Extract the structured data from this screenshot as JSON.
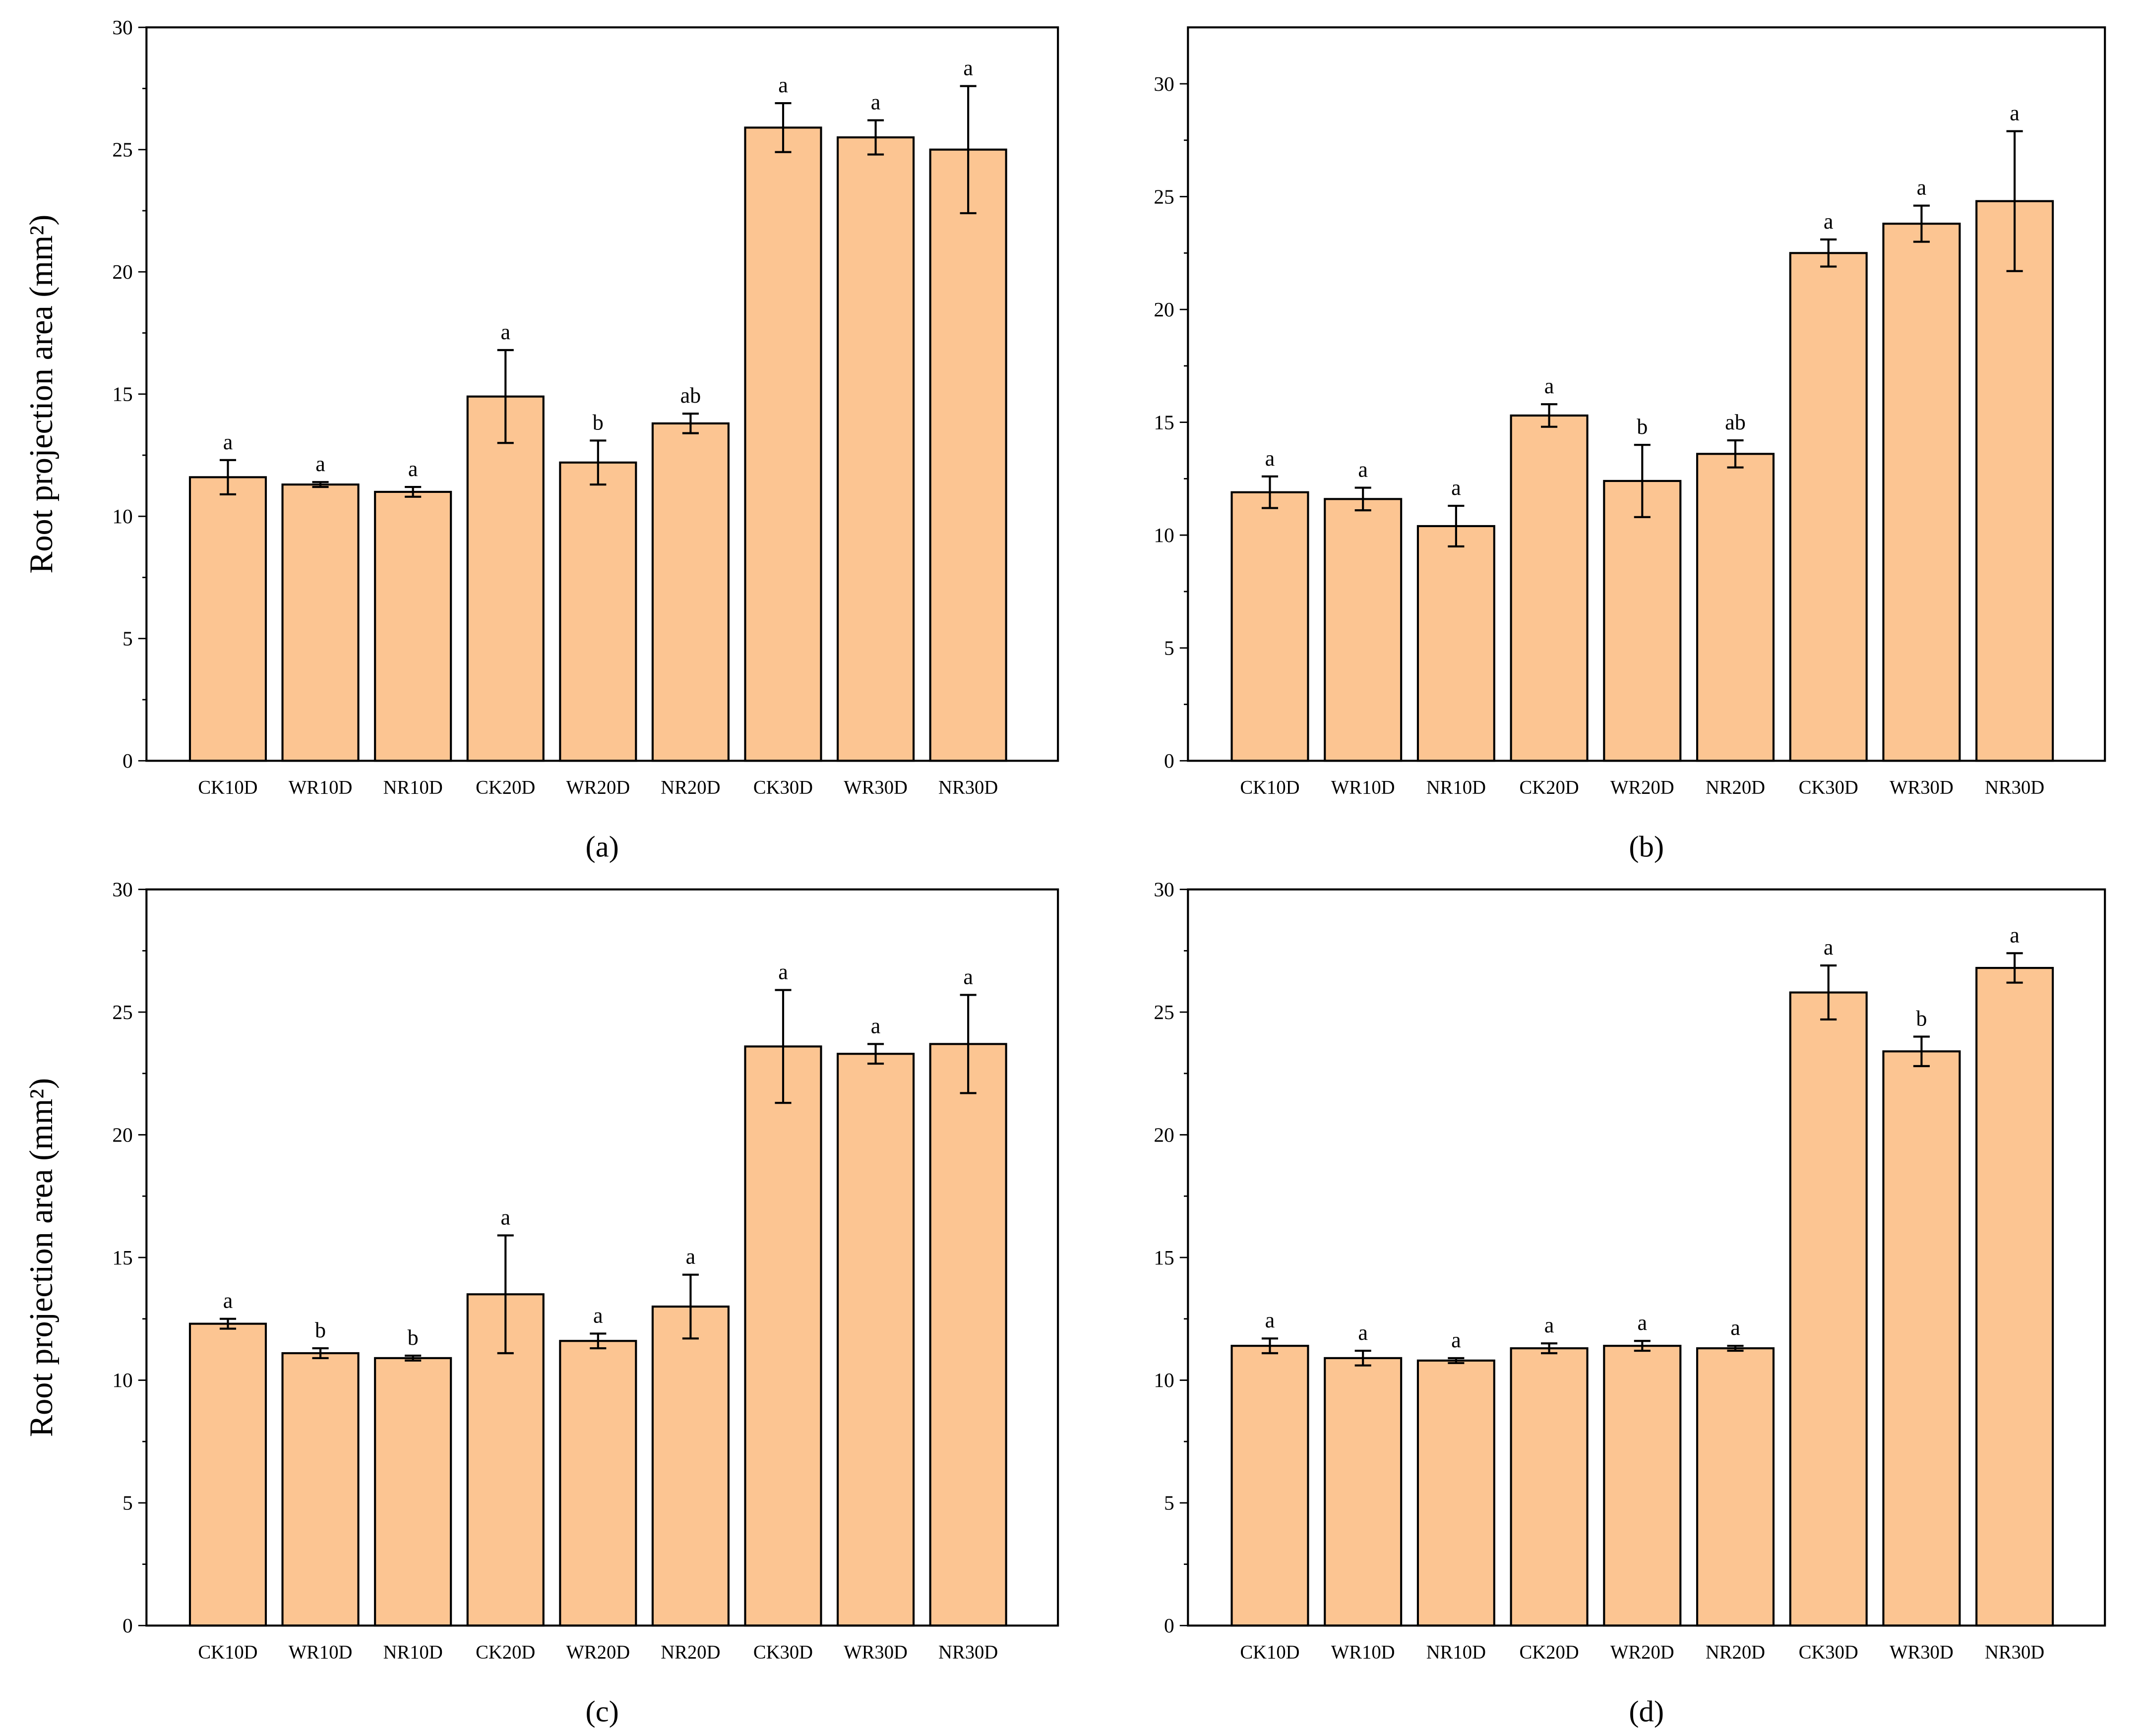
{
  "chart_data": [
    {
      "type": "bar",
      "caption": "(a)",
      "ylabel": "Root projection area (mm²)",
      "color": "#fcc592",
      "categories": [
        "CK10D",
        "WR10D",
        "NR10D",
        "CK20D",
        "WR20D",
        "NR20D",
        "CK30D",
        "WR30D",
        "NR30D"
      ],
      "values": [
        11.6,
        11.3,
        11.0,
        14.9,
        12.2,
        13.8,
        25.9,
        25.5,
        25.0
      ],
      "errors": [
        0.7,
        0.1,
        0.2,
        1.9,
        0.9,
        0.4,
        1.0,
        0.7,
        2.6
      ],
      "letters": [
        "a",
        "a",
        "a",
        "a",
        "b",
        "ab",
        "a",
        "a",
        "a"
      ],
      "ylim": [
        0,
        30
      ],
      "yticks": [
        0,
        5,
        10,
        15,
        20,
        25,
        30
      ]
    },
    {
      "type": "bar",
      "caption": "(b)",
      "color": "#fcc592",
      "categories": [
        "CK10D",
        "WR10D",
        "NR10D",
        "CK20D",
        "WR20D",
        "NR20D",
        "CK30D",
        "WR30D",
        "NR30D"
      ],
      "values": [
        11.9,
        11.6,
        10.4,
        15.3,
        12.4,
        13.6,
        22.5,
        23.8,
        24.8
      ],
      "errors": [
        0.7,
        0.5,
        0.9,
        0.5,
        1.6,
        0.6,
        0.6,
        0.8,
        3.1
      ],
      "letters": [
        "a",
        "a",
        "a",
        "a",
        "b",
        "ab",
        "a",
        "a",
        "a"
      ],
      "ylim": [
        0,
        32.5
      ],
      "yticks": [
        0,
        5,
        10,
        15,
        20,
        25,
        30
      ]
    },
    {
      "type": "bar",
      "caption": "(c)",
      "ylabel": "Root projection area (mm²)",
      "color": "#fcc592",
      "categories": [
        "CK10D",
        "WR10D",
        "NR10D",
        "CK20D",
        "WR20D",
        "NR20D",
        "CK30D",
        "WR30D",
        "NR30D"
      ],
      "values": [
        12.3,
        11.1,
        10.9,
        13.5,
        11.6,
        13.0,
        23.6,
        23.3,
        23.7
      ],
      "errors": [
        0.2,
        0.2,
        0.1,
        2.4,
        0.3,
        1.3,
        2.3,
        0.4,
        2.0
      ],
      "letters": [
        "a",
        "b",
        "b",
        "a",
        "a",
        "a",
        "a",
        "a",
        "a"
      ],
      "ylim": [
        0,
        30
      ],
      "yticks": [
        0,
        5,
        10,
        15,
        20,
        25,
        30
      ]
    },
    {
      "type": "bar",
      "caption": "(d)",
      "color": "#fcc592",
      "categories": [
        "CK10D",
        "WR10D",
        "NR10D",
        "CK20D",
        "WR20D",
        "NR20D",
        "CK30D",
        "WR30D",
        "NR30D"
      ],
      "values": [
        11.4,
        10.9,
        10.8,
        11.3,
        11.4,
        11.3,
        25.8,
        23.4,
        26.8
      ],
      "errors": [
        0.3,
        0.3,
        0.1,
        0.2,
        0.2,
        0.1,
        1.1,
        0.6,
        0.6
      ],
      "letters": [
        "a",
        "a",
        "a",
        "a",
        "a",
        "a",
        "a",
        "b",
        "a"
      ],
      "ylim": [
        0,
        30
      ],
      "yticks": [
        0,
        5,
        10,
        15,
        20,
        25,
        30
      ]
    }
  ]
}
